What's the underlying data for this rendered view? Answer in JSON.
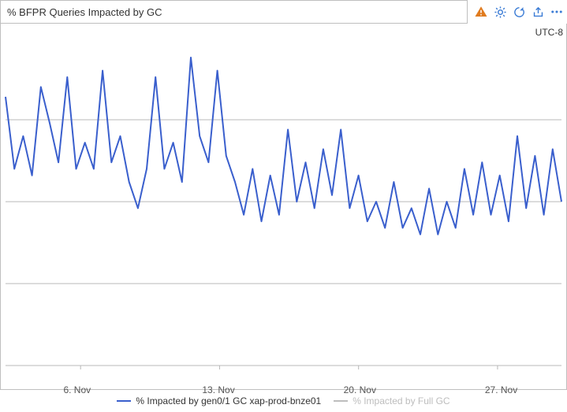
{
  "header": {
    "title": "% BFPR Queries Impacted by GC"
  },
  "toolbar": {
    "alert_icon_color": "#e07b1f",
    "settings_icon_color": "#3a7bd5",
    "refresh_icon_color": "#3a7bd5",
    "share_icon_color": "#3a7bd5",
    "more_icon_color": "#3a7bd5"
  },
  "chart": {
    "type": "line",
    "tz_label": "UTC-8",
    "background_color": "#ffffff",
    "border_color": "#bfbfbf",
    "grid_color": "#b8b8b8",
    "grid_lines_y": [
      0,
      25,
      50,
      75
    ],
    "ylim": [
      0,
      100
    ],
    "plot_top_pad": 18,
    "plot_bottom_pad": 30,
    "plot_left_pad": 6,
    "plot_right_pad": 6,
    "x_ticks": [
      {
        "label": "6. Nov",
        "pos": 0.135
      },
      {
        "label": "13. Nov",
        "pos": 0.385
      },
      {
        "label": "20. Nov",
        "pos": 0.635
      },
      {
        "label": "27. Nov",
        "pos": 0.885
      }
    ],
    "series": [
      {
        "name": "% Impacted by gen0/1 GC xap-prod-bnze01",
        "color": "#3a5fcd",
        "line_width": 2,
        "active": true,
        "values": [
          82,
          60,
          70,
          58,
          85,
          74,
          62,
          88,
          60,
          68,
          60,
          90,
          62,
          70,
          56,
          48,
          60,
          88,
          60,
          68,
          56,
          94,
          70,
          62,
          90,
          64,
          56,
          46,
          60,
          44,
          58,
          46,
          72,
          50,
          62,
          48,
          66,
          52,
          72,
          48,
          58,
          44,
          50,
          42,
          56,
          42,
          48,
          40,
          54,
          40,
          50,
          42,
          60,
          46,
          62,
          46,
          58,
          44,
          70,
          48,
          64,
          46,
          66,
          50
        ]
      },
      {
        "name": "% Impacted by Full GC",
        "color": "#bdbdbd",
        "line_width": 2,
        "active": false,
        "values": []
      }
    ]
  },
  "legend": {
    "items": [
      {
        "label": "% Impacted by gen0/1 GC xap-prod-bnze01",
        "color": "#3a5fcd",
        "text_color": "#333333"
      },
      {
        "label": "% Impacted by Full GC",
        "color": "#bdbdbd",
        "text_color": "#bdbdbd"
      }
    ]
  }
}
